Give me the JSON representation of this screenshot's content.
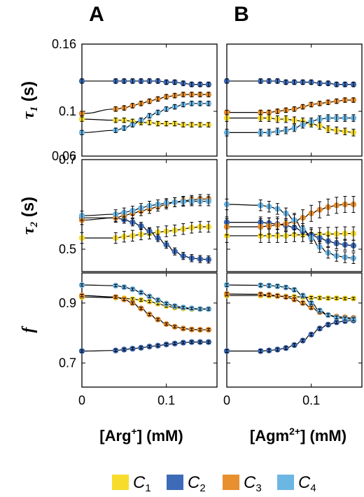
{
  "panel_letters": [
    "A",
    "B"
  ],
  "x_labels": [
    {
      "pre": "[Arg",
      "sup": "+",
      "post": "] (mM)"
    },
    {
      "pre": "[Agm",
      "sup": "2+",
      "post": "] (mM)"
    }
  ],
  "y_labels": [
    {
      "sym": "τ",
      "sub": "1",
      "unit": " (s)"
    },
    {
      "sym": "τ",
      "sub": "2",
      "unit": " (s)"
    },
    {
      "sym": "f",
      "sub": "",
      "unit": ""
    }
  ],
  "legend": [
    {
      "letter": "C",
      "sub": "1",
      "color": "#f7dc2c"
    },
    {
      "letter": "C",
      "sub": "2",
      "color": "#3d6bb8"
    },
    {
      "letter": "C",
      "sub": "3",
      "color": "#e88f2e"
    },
    {
      "letter": "C",
      "sub": "4",
      "color": "#6cb6e4"
    }
  ],
  "chart_data": {
    "type": "scatter",
    "x": [
      0,
      0.04,
      0.05,
      0.06,
      0.07,
      0.08,
      0.09,
      0.1,
      0.11,
      0.12,
      0.13,
      0.14,
      0.15
    ],
    "x_ticks": [
      0,
      0.1
    ],
    "x_tick_labels": [
      "0",
      "0.1"
    ],
    "xlim": [
      0,
      0.16
    ],
    "rows": [
      {
        "ylim": [
          0.06,
          0.16
        ],
        "y_ticks": [
          0.06,
          0.1,
          0.16
        ],
        "y_tick_labels": [
          "0.06",
          "0.1",
          "0.16"
        ]
      },
      {
        "ylim": [
          0.45,
          0.7
        ],
        "y_ticks": [
          0.5,
          0.7
        ],
        "y_tick_labels": [
          "0.5",
          "0.7"
        ]
      },
      {
        "ylim": [
          0.62,
          1.0
        ],
        "y_ticks": [
          0.7,
          0.9
        ],
        "y_tick_labels": [
          "0.7",
          "0.9"
        ]
      }
    ],
    "panels": [
      {
        "column": "A",
        "row": 0,
        "series": [
          {
            "values": [
              0.093,
              0.092,
              0.092,
              0.091,
              0.09,
              0.09,
              0.089,
              0.089,
              0.089,
              0.088,
              0.088,
              0.088,
              0.088
            ],
            "err": 0.002
          },
          {
            "values": [
              0.127,
              0.127,
              0.127,
              0.127,
              0.127,
              0.127,
              0.127,
              0.126,
              0.126,
              0.125,
              0.124,
              0.124,
              0.124
            ],
            "err": 0.002
          },
          {
            "values": [
              0.098,
              0.102,
              0.103,
              0.105,
              0.107,
              0.109,
              0.111,
              0.113,
              0.114,
              0.115,
              0.115,
              0.115,
              0.115
            ],
            "err": 0.002
          },
          {
            "values": [
              0.081,
              0.083,
              0.085,
              0.088,
              0.092,
              0.096,
              0.099,
              0.102,
              0.104,
              0.106,
              0.107,
              0.107,
              0.107
            ],
            "err": 0.002
          }
        ]
      },
      {
        "column": "B",
        "row": 0,
        "series": [
          {
            "values": [
              0.094,
              0.094,
              0.094,
              0.093,
              0.093,
              0.092,
              0.091,
              0.089,
              0.087,
              0.084,
              0.083,
              0.082,
              0.081
            ],
            "err": 0.003
          },
          {
            "values": [
              0.127,
              0.127,
              0.127,
              0.127,
              0.126,
              0.126,
              0.126,
              0.126,
              0.125,
              0.125,
              0.124,
              0.124,
              0.124
            ],
            "err": 0.002
          },
          {
            "values": [
              0.099,
              0.099,
              0.099,
              0.1,
              0.101,
              0.102,
              0.104,
              0.106,
              0.107,
              0.108,
              0.109,
              0.11,
              0.11
            ],
            "err": 0.002
          },
          {
            "values": [
              0.081,
              0.081,
              0.081,
              0.082,
              0.083,
              0.085,
              0.088,
              0.091,
              0.093,
              0.094,
              0.094,
              0.094,
              0.094
            ],
            "err": 0.003
          }
        ]
      },
      {
        "column": "A",
        "row": 1,
        "series": [
          {
            "values": [
              0.525,
              0.525,
              0.528,
              0.53,
              0.533,
              0.535,
              0.538,
              0.54,
              0.542,
              0.545,
              0.548,
              0.55,
              0.55
            ],
            "err": 0.012
          },
          {
            "values": [
              0.57,
              0.57,
              0.566,
              0.56,
              0.552,
              0.54,
              0.525,
              0.51,
              0.495,
              0.485,
              0.48,
              0.478,
              0.477
            ],
            "err": 0.008
          },
          {
            "values": [
              0.565,
              0.57,
              0.575,
              0.58,
              0.585,
              0.59,
              0.595,
              0.6,
              0.605,
              0.608,
              0.61,
              0.612,
              0.612
            ],
            "err": 0.01
          },
          {
            "values": [
              0.575,
              0.578,
              0.582,
              0.586,
              0.592,
              0.597,
              0.6,
              0.603,
              0.605,
              0.606,
              0.607,
              0.607,
              0.607
            ],
            "err": 0.01
          }
        ]
      },
      {
        "column": "B",
        "row": 1,
        "series": [
          {
            "values": [
              0.53,
              0.53,
              0.53,
              0.53,
              0.53,
              0.532,
              0.532,
              0.533,
              0.533,
              0.534,
              0.534,
              0.535,
              0.535
            ],
            "err": 0.015
          },
          {
            "values": [
              0.56,
              0.56,
              0.558,
              0.556,
              0.553,
              0.548,
              0.54,
              0.532,
              0.525,
              0.518,
              0.513,
              0.51,
              0.508
            ],
            "err": 0.012
          },
          {
            "values": [
              0.55,
              0.55,
              0.552,
              0.554,
              0.557,
              0.562,
              0.57,
              0.58,
              0.588,
              0.594,
              0.598,
              0.6,
              0.6
            ],
            "err": 0.018
          },
          {
            "values": [
              0.6,
              0.598,
              0.595,
              0.59,
              0.58,
              0.565,
              0.545,
              0.525,
              0.505,
              0.492,
              0.485,
              0.482,
              0.48
            ],
            "err": 0.012
          }
        ]
      },
      {
        "column": "A",
        "row": 2,
        "series": [
          {
            "values": [
              0.92,
              0.918,
              0.916,
              0.913,
              0.91,
              0.905,
              0.898,
              0.89,
              0.885,
              0.882,
              0.88,
              0.88,
              0.88
            ],
            "err": 0.004
          },
          {
            "values": [
              0.74,
              0.742,
              0.745,
              0.748,
              0.751,
              0.755,
              0.758,
              0.762,
              0.765,
              0.768,
              0.77,
              0.77,
              0.77
            ],
            "err": 0.004
          },
          {
            "values": [
              0.925,
              0.92,
              0.912,
              0.9,
              0.882,
              0.862,
              0.845,
              0.83,
              0.821,
              0.815,
              0.812,
              0.811,
              0.811
            ],
            "err": 0.004
          },
          {
            "values": [
              0.96,
              0.958,
              0.953,
              0.946,
              0.935,
              0.922,
              0.91,
              0.898,
              0.89,
              0.885,
              0.882,
              0.88,
              0.88
            ],
            "err": 0.004
          }
        ]
      },
      {
        "column": "B",
        "row": 2,
        "series": [
          {
            "values": [
              0.925,
              0.925,
              0.924,
              0.923,
              0.922,
              0.921,
              0.92,
              0.918,
              0.917,
              0.916,
              0.916,
              0.915,
              0.915
            ],
            "err": 0.004
          },
          {
            "values": [
              0.74,
              0.74,
              0.742,
              0.745,
              0.75,
              0.76,
              0.775,
              0.795,
              0.815,
              0.828,
              0.836,
              0.84,
              0.842
            ],
            "err": 0.005
          },
          {
            "values": [
              0.93,
              0.929,
              0.927,
              0.924,
              0.92,
              0.912,
              0.9,
              0.885,
              0.87,
              0.86,
              0.855,
              0.852,
              0.85
            ],
            "err": 0.005
          },
          {
            "values": [
              0.96,
              0.959,
              0.958,
              0.956,
              0.952,
              0.944,
              0.925,
              0.9,
              0.875,
              0.86,
              0.852,
              0.848,
              0.846
            ],
            "err": 0.005
          }
        ]
      }
    ]
  }
}
